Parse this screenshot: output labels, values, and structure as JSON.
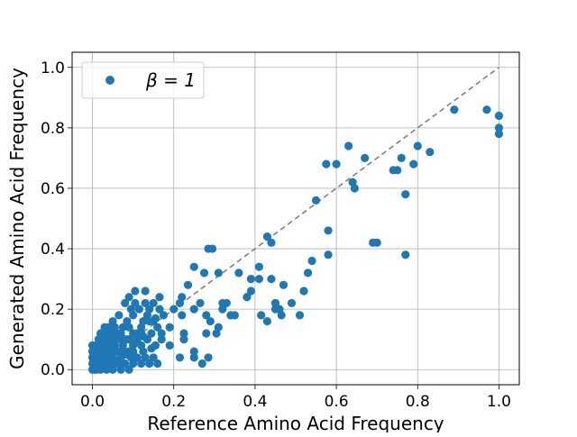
{
  "chart_data": {
    "type": "scatter",
    "xlabel": "Reference Amino Acid Frequency",
    "ylabel": "Generated Amino Acid Frequency",
    "xlim": [
      -0.05,
      1.05
    ],
    "ylim": [
      -0.05,
      1.05
    ],
    "xticks": [
      "0.0",
      "0.2",
      "0.4",
      "0.6",
      "0.8",
      "1.0"
    ],
    "yticks": [
      "0.0",
      "0.2",
      "0.4",
      "0.6",
      "0.8",
      "1.0"
    ],
    "tick_values": [
      0,
      0.2,
      0.4,
      0.6,
      0.8,
      1.0
    ],
    "grid": true,
    "legend_position": "top-left",
    "legend_label": "β = 1",
    "reference_line": {
      "from": [
        0,
        0
      ],
      "to": [
        1,
        1
      ],
      "style": "dashed",
      "color": "#808080"
    },
    "series": [
      {
        "name": "β = 1",
        "color": "#1f77b4",
        "points": [
          [
            1.0,
            0.84
          ],
          [
            1.0,
            0.8
          ],
          [
            1.0,
            0.78
          ],
          [
            0.97,
            0.86
          ],
          [
            0.89,
            0.86
          ],
          [
            0.83,
            0.72
          ],
          [
            0.8,
            0.74
          ],
          [
            0.79,
            0.68
          ],
          [
            0.77,
            0.58
          ],
          [
            0.77,
            0.38
          ],
          [
            0.76,
            0.7
          ],
          [
            0.75,
            0.66
          ],
          [
            0.74,
            0.66
          ],
          [
            0.7,
            0.42
          ],
          [
            0.69,
            0.42
          ],
          [
            0.67,
            0.7
          ],
          [
            0.63,
            0.74
          ],
          [
            0.64,
            0.62
          ],
          [
            0.645,
            0.6
          ],
          [
            0.6,
            0.68
          ],
          [
            0.575,
            0.68
          ],
          [
            0.58,
            0.46
          ],
          [
            0.58,
            0.38
          ],
          [
            0.55,
            0.56
          ],
          [
            0.54,
            0.36
          ],
          [
            0.53,
            0.32
          ],
          [
            0.52,
            0.26
          ],
          [
            0.51,
            0.18
          ],
          [
            0.49,
            0.22
          ],
          [
            0.47,
            0.28
          ],
          [
            0.46,
            0.2
          ],
          [
            0.465,
            0.18
          ],
          [
            0.45,
            0.22
          ],
          [
            0.44,
            0.42
          ],
          [
            0.45,
            0.22
          ],
          [
            0.45,
            0.2
          ],
          [
            0.43,
            0.44
          ],
          [
            0.44,
            0.3
          ],
          [
            0.43,
            0.16
          ],
          [
            0.415,
            0.18
          ],
          [
            0.41,
            0.34
          ],
          [
            0.41,
            0.3
          ],
          [
            0.39,
            0.3
          ],
          [
            0.39,
            0.26
          ],
          [
            0.38,
            0.24
          ],
          [
            0.36,
            0.32
          ],
          [
            0.35,
            0.18
          ],
          [
            0.34,
            0.18
          ],
          [
            0.33,
            0.22
          ],
          [
            0.32,
            0.22
          ],
          [
            0.32,
            0.2
          ],
          [
            0.31,
            0.32
          ],
          [
            0.31,
            0.14
          ],
          [
            0.305,
            0.12
          ],
          [
            0.295,
            0.4
          ],
          [
            0.29,
            0.16
          ],
          [
            0.285,
            0.4
          ],
          [
            0.28,
            0.18
          ],
          [
            0.28,
            0.12
          ],
          [
            0.285,
            0.04
          ],
          [
            0.275,
            0.32
          ],
          [
            0.27,
            0.02
          ],
          [
            0.265,
            0.22
          ],
          [
            0.25,
            0.34
          ],
          [
            0.25,
            0.2
          ],
          [
            0.25,
            0.06
          ],
          [
            0.25,
            0.04
          ],
          [
            0.235,
            0.28
          ],
          [
            0.225,
            0.12
          ],
          [
            0.225,
            0.1
          ],
          [
            0.22,
            0.24
          ],
          [
            0.215,
            0.22
          ],
          [
            0.22,
            0.18
          ],
          [
            0.215,
            0.04
          ],
          [
            0.2,
            0.2
          ],
          [
            0.19,
            0.14
          ],
          [
            0.19,
            0.08
          ],
          [
            0.175,
            0.18
          ],
          [
            0.17,
            0.12
          ],
          [
            0.17,
            0.1
          ],
          [
            0.165,
            0.24
          ],
          [
            0.165,
            0.2
          ],
          [
            0.16,
            0.14
          ],
          [
            0.155,
            0.08
          ],
          [
            0.15,
            0.22
          ],
          [
            0.15,
            0.16
          ],
          [
            0.145,
            0.12
          ],
          [
            0.14,
            0.2
          ],
          [
            0.135,
            0.18
          ],
          [
            0.135,
            0.1
          ],
          [
            0.14,
            0.02
          ],
          [
            0.13,
            0.26
          ],
          [
            0.13,
            0.22
          ],
          [
            0.125,
            0.16
          ],
          [
            0.125,
            0.06
          ],
          [
            0.12,
            0.14
          ],
          [
            0.12,
            0.12
          ],
          [
            0.12,
            0.02
          ],
          [
            0.115,
            0.2
          ],
          [
            0.11,
            0.1
          ],
          [
            0.11,
            0.04
          ],
          [
            0.105,
            0.26
          ],
          [
            0.105,
            0.22
          ],
          [
            0.1,
            0.18
          ],
          [
            0.1,
            0.12
          ],
          [
            0.1,
            0.08
          ],
          [
            0.095,
            0.2
          ],
          [
            0.09,
            0.24
          ],
          [
            0.09,
            0.14
          ],
          [
            0.09,
            0.06
          ],
          [
            0.085,
            0.16
          ],
          [
            0.085,
            0.1
          ],
          [
            0.08,
            0.22
          ],
          [
            0.08,
            0.02
          ],
          [
            0.075,
            0.14
          ],
          [
            0.075,
            0.08
          ],
          [
            0.07,
            0.12
          ],
          [
            0.07,
            0.04
          ],
          [
            0.065,
            0.18
          ],
          [
            0.065,
            0.06
          ],
          [
            0.06,
            0.1
          ],
          [
            0.06,
            0.02
          ],
          [
            0.055,
            0.14
          ],
          [
            0.055,
            0.08
          ],
          [
            0.05,
            0.12
          ],
          [
            0.05,
            0.04
          ],
          [
            0.045,
            0.1
          ],
          [
            0.045,
            0.06
          ],
          [
            0.04,
            0.14
          ],
          [
            0.04,
            0.02
          ],
          [
            0.035,
            0.12
          ],
          [
            0.035,
            0.08
          ],
          [
            0.03,
            0.1
          ],
          [
            0.03,
            0.04
          ],
          [
            0.025,
            0.08
          ],
          [
            0.025,
            0.02
          ],
          [
            0.02,
            0.06
          ],
          [
            0.02,
            0.0
          ],
          [
            0.015,
            0.04
          ],
          [
            0.01,
            0.08
          ],
          [
            0.01,
            0.02
          ],
          [
            0.005,
            0.06
          ],
          [
            0.005,
            0.0
          ],
          [
            0.0,
            0.04
          ],
          [
            0.0,
            0.02
          ],
          [
            0.0,
            0.0
          ],
          [
            0.0,
            0.06
          ],
          [
            0.0,
            0.08
          ],
          [
            0.01,
            0.0
          ],
          [
            0.015,
            0.1
          ],
          [
            0.025,
            0.1
          ],
          [
            0.03,
            0.06
          ],
          [
            0.035,
            0.0
          ],
          [
            0.04,
            0.08
          ],
          [
            0.05,
            0.0
          ],
          [
            0.055,
            0.1
          ],
          [
            0.06,
            0.12
          ],
          [
            0.07,
            0.0
          ],
          [
            0.075,
            0.02
          ],
          [
            0.08,
            0.1
          ],
          [
            0.09,
            0.0
          ],
          [
            0.095,
            0.04
          ],
          [
            0.1,
            0.02
          ],
          [
            0.11,
            0.12
          ],
          [
            0.12,
            0.08
          ],
          [
            0.13,
            0.04
          ],
          [
            0.14,
            0.16
          ],
          [
            0.15,
            0.04
          ],
          [
            0.16,
            0.02
          ],
          [
            0.02,
            0.12
          ],
          [
            0.03,
            0.14
          ],
          [
            0.04,
            0.1
          ],
          [
            0.05,
            0.16
          ],
          [
            0.06,
            0.06
          ],
          [
            0.07,
            0.1
          ],
          [
            0.08,
            0.06
          ],
          [
            0.09,
            0.1
          ],
          [
            0.1,
            0.06
          ],
          [
            0.035,
            0.04
          ],
          [
            0.045,
            0.02
          ],
          [
            0.005,
            0.03
          ],
          [
            0.015,
            0.07
          ],
          [
            0.025,
            0.05
          ],
          [
            0.065,
            0.03
          ],
          [
            0.085,
            0.05
          ],
          [
            0.105,
            0.09
          ],
          [
            0.125,
            0.11
          ],
          [
            0.145,
            0.07
          ],
          [
            0.155,
            0.17
          ],
          [
            0.035,
            0.11
          ]
        ]
      }
    ]
  }
}
